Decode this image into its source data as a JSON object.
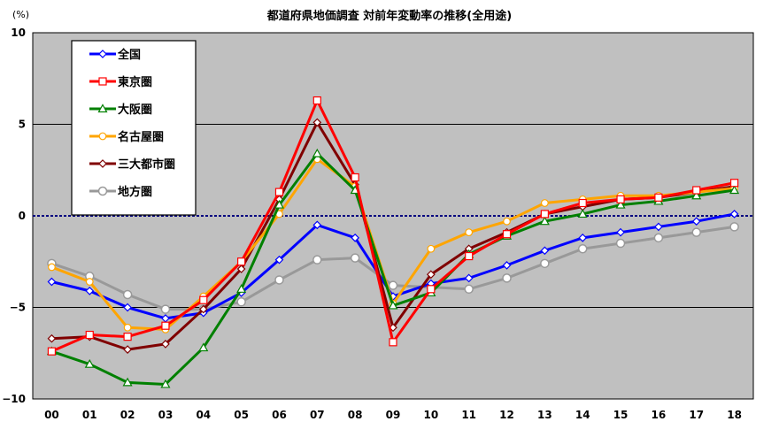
{
  "chart_data": {
    "type": "line",
    "title": "都道府県地価調査 対前年変動率の推移(全用途)",
    "ylabel": "(%)",
    "xlabel": "",
    "categories": [
      "00",
      "01",
      "02",
      "03",
      "04",
      "05",
      "06",
      "07",
      "08",
      "09",
      "10",
      "11",
      "12",
      "13",
      "14",
      "15",
      "16",
      "17",
      "18"
    ],
    "ylim": [
      -10,
      10
    ],
    "yticks": [
      10,
      5,
      0,
      -5,
      -10
    ],
    "y_tick_labels": [
      "10",
      "5",
      "0",
      "−5",
      "−10"
    ],
    "grid": "horizontal",
    "legend_position": "top-left",
    "background_color": "#c0c0c0",
    "zero_line_color": "#000080",
    "series": [
      {
        "name": "全国",
        "color": "#0000ff",
        "marker": "diamond",
        "values": [
          -3.6,
          -4.1,
          -5.0,
          -5.6,
          -5.3,
          -4.2,
          -2.4,
          -0.5,
          -1.2,
          -4.4,
          -3.7,
          -3.4,
          -2.7,
          -1.9,
          -1.2,
          -0.9,
          -0.6,
          -0.3,
          0.1
        ]
      },
      {
        "name": "東京圏",
        "color": "#ff0000",
        "marker": "square",
        "values": [
          -7.4,
          -6.5,
          -6.6,
          -6.0,
          -4.6,
          -2.5,
          1.3,
          6.3,
          2.1,
          -6.9,
          -4.0,
          -2.2,
          -1.0,
          0.1,
          0.7,
          0.9,
          1.0,
          1.4,
          1.8
        ]
      },
      {
        "name": "大阪圏",
        "color": "#008000",
        "marker": "triangle",
        "values": [
          -7.4,
          -8.1,
          -9.1,
          -9.2,
          -7.2,
          -4.0,
          0.6,
          3.4,
          1.4,
          -4.9,
          -4.2,
          -2.1,
          -1.1,
          -0.3,
          0.1,
          0.6,
          0.8,
          1.1,
          1.4
        ]
      },
      {
        "name": "名古屋圏",
        "color": "#ffa500",
        "marker": "circle",
        "values": [
          -2.8,
          -3.6,
          -6.1,
          -6.2,
          -4.4,
          -2.5,
          0.1,
          3.1,
          1.6,
          -4.8,
          -1.8,
          -0.9,
          -0.3,
          0.7,
          0.9,
          1.1,
          1.1,
          1.3,
          1.5
        ]
      },
      {
        "name": "三大都市圏",
        "color": "#800000",
        "marker": "diamond",
        "values": [
          -6.7,
          -6.6,
          -7.3,
          -7.0,
          -5.1,
          -2.9,
          0.9,
          5.1,
          1.7,
          -6.1,
          -3.2,
          -1.8,
          -0.9,
          0.1,
          0.5,
          0.9,
          1.0,
          1.3,
          1.6
        ]
      },
      {
        "name": "地方圏",
        "color": "#999999",
        "marker": "circle-large",
        "values": [
          -2.6,
          -3.3,
          -4.3,
          -5.1,
          -5.1,
          -4.7,
          -3.5,
          -2.4,
          -2.3,
          -3.8,
          -3.9,
          -4.0,
          -3.4,
          -2.6,
          -1.8,
          -1.5,
          -1.2,
          -0.9,
          -0.6
        ]
      }
    ]
  }
}
